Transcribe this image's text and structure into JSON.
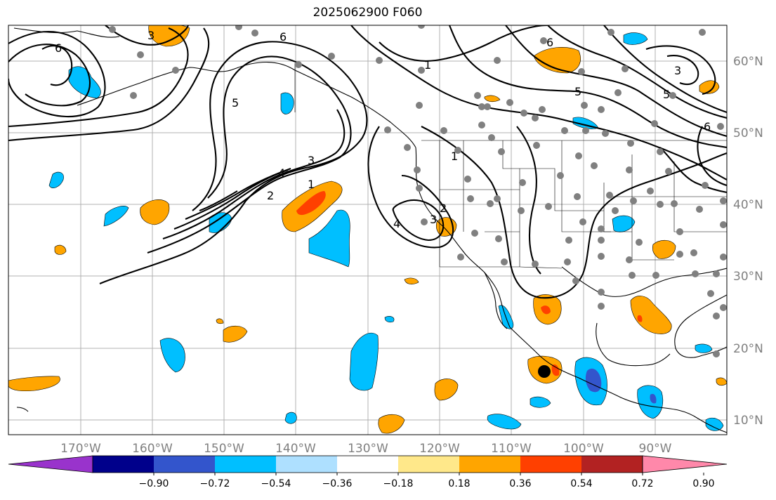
{
  "title": "2025062900 F060",
  "lon_labels": [
    "170°W",
    "160°W",
    "150°W",
    "140°W",
    "130°W",
    "120°W",
    "110°W",
    "100°W",
    "90°W"
  ],
  "lat_labels": [
    "60°N",
    "50°N",
    "40°N",
    "30°N",
    "20°N",
    "10°N"
  ],
  "colorbar": {
    "ticks": [
      "−0.90",
      "−0.72",
      "−0.54",
      "−0.36",
      "−0.18",
      "0.18",
      "0.36",
      "0.54",
      "0.72",
      "0.90"
    ],
    "colors": [
      "#9933cc",
      "#00008b",
      "#3355cc",
      "#00bfff",
      "#aee0ff",
      "#ffffff",
      "#ffe88a",
      "#ffa500",
      "#ff4000",
      "#b22222",
      "#ff88aa"
    ]
  },
  "contour_labels": [
    "6",
    "6",
    "3",
    "5",
    "4",
    "3",
    "2",
    "1",
    "1",
    "2",
    "3",
    "5",
    "6",
    "3",
    "5",
    "6",
    "1",
    "4"
  ],
  "colors": {
    "negative_fill": "#00bfff",
    "negative_strong": "#3355cc",
    "positive_fill": "#ffa500",
    "positive_strong": "#ff4000",
    "station_dot": "#808080",
    "gridline": "#b0b0b0",
    "contour": "#000000"
  },
  "marker": "storm-center-dot"
}
